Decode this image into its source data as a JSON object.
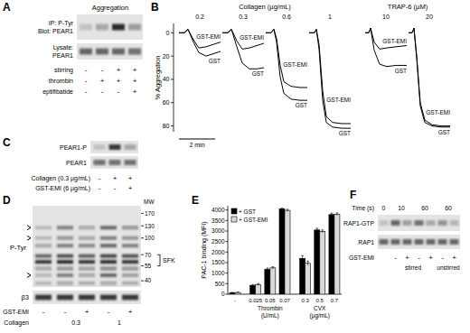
{
  "figure": {
    "A": {
      "letter": "A",
      "title": "Aggregation",
      "blots": [
        {
          "label": [
            "IP: P-Tyr",
            "Blot: PEAR1"
          ],
          "intensity": [
            0.15,
            0.3,
            0.9,
            0.35
          ]
        },
        {
          "label": [
            "Lysate:",
            "PEAR1"
          ],
          "intensity": [
            0.6,
            0.6,
            0.6,
            0.55
          ]
        }
      ],
      "rows": [
        {
          "label": "stirring",
          "values": [
            "-",
            "-",
            "+",
            "+"
          ]
        },
        {
          "label": "thrombin",
          "values": [
            "-",
            "+",
            "+",
            "+"
          ]
        },
        {
          "label": "eptifibatide",
          "values": [
            "-",
            "-",
            "-",
            "+"
          ]
        }
      ]
    },
    "C": {
      "letter": "C",
      "blots": [
        {
          "label": "PEAR1-P",
          "intensity": [
            0.15,
            0.8,
            0.3
          ]
        },
        {
          "label": "PEAR1",
          "intensity": [
            0.55,
            0.55,
            0.55
          ]
        }
      ],
      "rows": [
        {
          "label": "Collagen (0.3 µg/mL)",
          "values": [
            "-",
            "+",
            "+"
          ]
        },
        {
          "label": "GST-EMI (6 µg/mL)",
          "values": [
            "-",
            "-",
            "+"
          ]
        }
      ]
    },
    "D": {
      "letter": "D",
      "mw_label": "MW",
      "mw_markers": [
        170,
        130,
        100,
        70,
        55,
        40
      ],
      "kda_lim": [
        200,
        35
      ],
      "arrows_kda": [
        125,
        100,
        45
      ],
      "sfk": {
        "label": "SFK",
        "kda": [
          70,
          55
        ]
      },
      "blots": [
        {
          "label": "P-Tyr",
          "bands": [
            {
              "kda": 125,
              "intensity": [
                0.2,
                0.5,
                0.3,
                0.6,
                0.4
              ]
            },
            {
              "kda": 100,
              "intensity": [
                0.2,
                0.4,
                0.3,
                0.5,
                0.4
              ]
            },
            {
              "kda": 85,
              "intensity": [
                0.3,
                0.5,
                0.45,
                0.6,
                0.5
              ]
            },
            {
              "kda": 68,
              "intensity": [
                0.6,
                0.7,
                0.65,
                0.75,
                0.7
              ]
            },
            {
              "kda": 60,
              "intensity": [
                0.85,
                0.9,
                0.85,
                0.9,
                0.85
              ]
            },
            {
              "kda": 52,
              "intensity": [
                0.3,
                0.4,
                0.35,
                0.45,
                0.4
              ]
            },
            {
              "kda": 45,
              "intensity": [
                0.2,
                0.5,
                0.3,
                0.6,
                0.35
              ]
            },
            {
              "kda": 38,
              "intensity": [
                0.2,
                0.3,
                0.25,
                0.3,
                0.25
              ]
            }
          ]
        },
        {
          "label": "β3",
          "intensity": [
            0.8,
            0.8,
            0.8,
            0.8,
            0.8
          ]
        }
      ],
      "rows": [
        {
          "label": "GST-EMI",
          "values": [
            "-",
            "-",
            "+",
            "-",
            "+"
          ]
        },
        {
          "label": "Collagen",
          "values": [
            null,
            0.3,
            0.3,
            1,
            1
          ]
        }
      ]
    },
    "F": {
      "letter": "F",
      "time_label": "Time (s)",
      "time": [
        0,
        10,
        10,
        60,
        60,
        60,
        60
      ],
      "blots": [
        {
          "label": "RAP1-GTP",
          "intensity": [
            0.15,
            0.6,
            0.35,
            0.55,
            0.3,
            0.4,
            0.2
          ]
        },
        {
          "label": "RAP1",
          "intensity": [
            0.6,
            0.6,
            0.6,
            0.6,
            0.6,
            0.6,
            0.6
          ]
        }
      ],
      "rows": [
        {
          "label": "GST-EMI",
          "values": [
            null,
            "-",
            "+",
            "-",
            "+",
            "-",
            "+"
          ]
        }
      ],
      "conditions": [
        null,
        "stirred",
        "stirred",
        "stirred",
        "stirred",
        "unstirred",
        "unstirred"
      ]
    }
  },
  "chart_data": [
    {
      "panel": "B",
      "type": "line",
      "ylabel": "% Aggregation",
      "ylim": [
        85,
        -8
      ],
      "yticks": [
        0,
        20,
        40,
        60,
        80
      ],
      "tick_labels": "y",
      "scale_bar": {
        "value": 2,
        "label": "2 min"
      },
      "groups": [
        {
          "label": "Collagen (µg/mL)",
          "panels": [
            {
              "label": "0.2",
              "x": [
                0,
                0.3,
                0.5,
                0.8,
                1.1,
                1.5,
                1.9,
                2.3
              ],
              "series": [
                {
                  "name": "GST-EMI",
                  "color": "#000000",
                  "values": [
                    0,
                    0,
                    -3,
                    6,
                    13,
                    12,
                    10,
                    8
                  ]
                },
                {
                  "name": "GST",
                  "color": "#000000",
                  "values": [
                    0,
                    0,
                    -3,
                    8,
                    17,
                    20,
                    18,
                    16
                  ]
                }
              ]
            },
            {
              "label": "0.3",
              "x": [
                0,
                0.3,
                0.5,
                0.8,
                1.1,
                1.5,
                1.9,
                2.3
              ],
              "series": [
                {
                  "name": "GST-EMI",
                  "color": "#000000",
                  "values": [
                    0,
                    0,
                    -3,
                    7,
                    14,
                    13,
                    11,
                    9
                  ]
                },
                {
                  "name": "GST",
                  "color": "#000000",
                  "values": [
                    0,
                    0,
                    -3,
                    12,
                    26,
                    31,
                    31,
                    30
                  ]
                }
              ]
            },
            {
              "label": "0.6",
              "x": [
                0,
                0.3,
                0.45,
                0.6,
                0.8,
                1.0,
                1.4,
                1.9,
                2.3
              ],
              "series": [
                {
                  "name": "GST-EMI",
                  "color": "#000000",
                  "values": [
                    0,
                    0,
                    -3,
                    5,
                    28,
                    42,
                    46,
                    47,
                    47
                  ]
                },
                {
                  "name": "GST",
                  "color": "#000000",
                  "values": [
                    0,
                    0,
                    -3,
                    8,
                    38,
                    52,
                    57,
                    58,
                    58
                  ]
                }
              ]
            },
            {
              "label": "1",
              "x": [
                0,
                0.3,
                0.4,
                0.55,
                0.75,
                0.95,
                1.3,
                1.8,
                2.3
              ],
              "series": [
                {
                  "name": "GST-EMI",
                  "color": "#000000",
                  "values": [
                    0,
                    0,
                    -3,
                    10,
                    50,
                    72,
                    77,
                    78,
                    78
                  ]
                },
                {
                  "name": "GST",
                  "color": "#000000",
                  "values": [
                    0,
                    0,
                    -3,
                    14,
                    58,
                    77,
                    81,
                    82,
                    82
                  ]
                }
              ]
            }
          ]
        },
        {
          "label": "TRAP-6 (µM)",
          "panels": [
            {
              "label": "10",
              "x": [
                0,
                0.2,
                0.3,
                0.5,
                0.8,
                1.2,
                1.7,
                2.3
              ],
              "series": [
                {
                  "name": "GST-EMI",
                  "color": "#000000",
                  "values": [
                    0,
                    0,
                    -4,
                    8,
                    14,
                    13,
                    12,
                    11
                  ]
                },
                {
                  "name": "GST",
                  "color": "#000000",
                  "values": [
                    0,
                    0,
                    -4,
                    15,
                    27,
                    29,
                    28,
                    28
                  ]
                }
              ]
            },
            {
              "label": "20",
              "x": [
                0,
                0.2,
                0.3,
                0.45,
                0.65,
                0.9,
                1.3,
                1.8,
                2.3
              ],
              "series": [
                {
                  "name": "GST-EMI",
                  "color": "#000000",
                  "values": [
                    0,
                    0,
                    -4,
                    20,
                    60,
                    75,
                    79,
                    80,
                    80
                  ]
                },
                {
                  "name": "GST",
                  "color": "#000000",
                  "values": [
                    0,
                    0,
                    -4,
                    22,
                    63,
                    77,
                    80,
                    81,
                    81
                  ]
                }
              ]
            }
          ]
        }
      ]
    },
    {
      "panel": "E",
      "type": "bar",
      "ylabel": "PAC-1 binding (MFI)",
      "categories": [
        "-",
        "0.025",
        "0.05",
        "0.07",
        "0.3",
        "0.5",
        "0.7"
      ],
      "category_groups": [
        null,
        "Thrombin (U/mL)",
        "Thrombin (U/mL)",
        "Thrombin (U/mL)",
        "CVX (µg/mL)",
        "CVX (µg/mL)",
        "CVX (µg/mL)"
      ],
      "series": [
        {
          "name": "+ GST",
          "color": "#000000",
          "values": [
            70,
            420,
            1180,
            4050,
            1700,
            3050,
            3780
          ],
          "errors": [
            20,
            40,
            60,
            40,
            130,
            80,
            70
          ]
        },
        {
          "name": "+ GST-EMI",
          "color": "#d9d9d9",
          "values": [
            80,
            460,
            1250,
            3980,
            1470,
            2980,
            3800
          ],
          "errors": [
            20,
            40,
            50,
            50,
            100,
            70,
            60
          ]
        }
      ],
      "ylim": [
        0,
        4200
      ],
      "yticks": [
        0,
        500,
        1000,
        1500,
        2000,
        2500,
        3000,
        3500,
        4000
      ],
      "legend": "top-left"
    }
  ]
}
